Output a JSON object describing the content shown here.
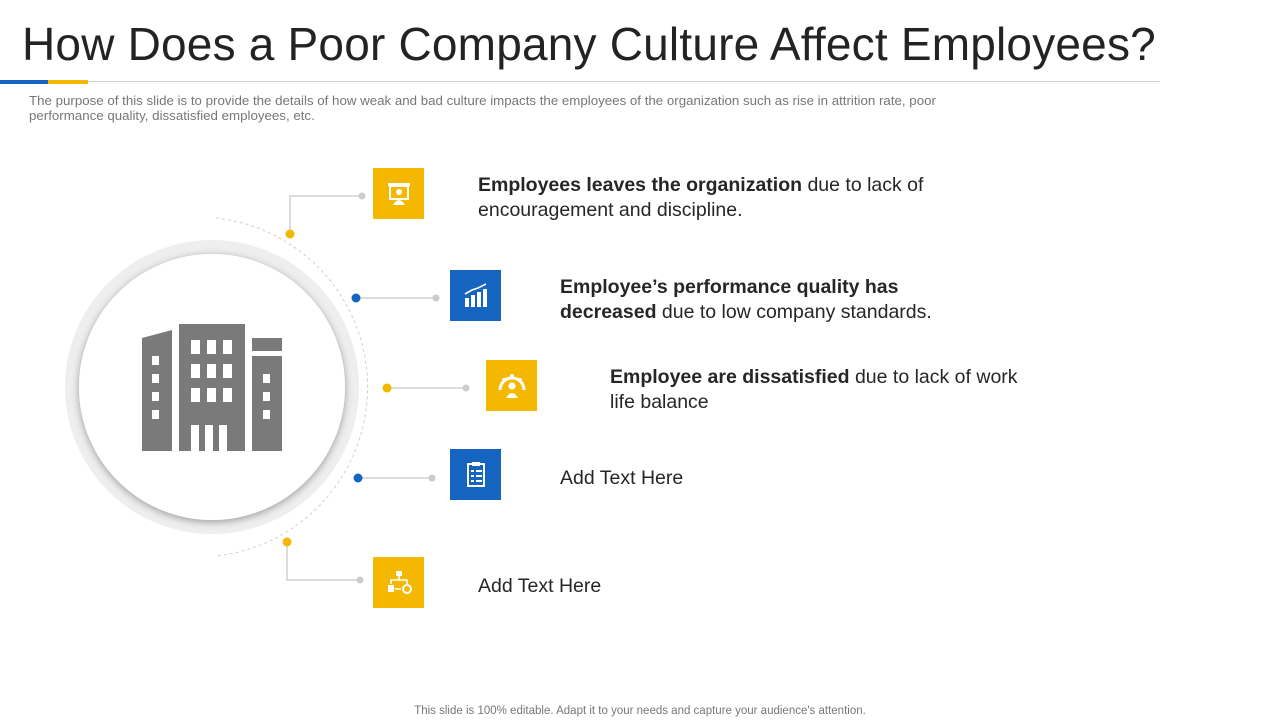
{
  "slide": {
    "title": "How Does a Poor Company Culture Affect Employees?",
    "subtitle": "The purpose of this slide is to provide the details of how weak and bad culture impacts the employees of the organization such as rise in attrition rate, poor performance quality, dissatisfied employees, etc.",
    "footer": "This slide is 100% editable. Adapt it to your needs and capture your audience's attention."
  },
  "colors": {
    "blue": "#1565c0",
    "yellow": "#f5b800",
    "building": "#7a7a7a",
    "connector": "#d0d0d0"
  },
  "center": {
    "icon": "office-building-icon"
  },
  "items": [
    {
      "icon": "presentation-person-icon",
      "color": "yellow",
      "bold": "Employees leaves the organization",
      "normal": " due to lack of encouragement and discipline."
    },
    {
      "icon": "bar-chart-icon",
      "color": "blue",
      "bold": "Employee’s performance quality has decreased",
      "normal": " due to low company standards."
    },
    {
      "icon": "team-person-icon",
      "color": "yellow",
      "bold": "Employee are dissatisfied",
      "normal": " due to lack of work life balance"
    },
    {
      "icon": "clipboard-checklist-icon",
      "color": "blue",
      "bold": "",
      "normal": "Add Text Here"
    },
    {
      "icon": "workflow-icon",
      "color": "yellow",
      "bold": "",
      "normal": "Add Text Here"
    }
  ]
}
